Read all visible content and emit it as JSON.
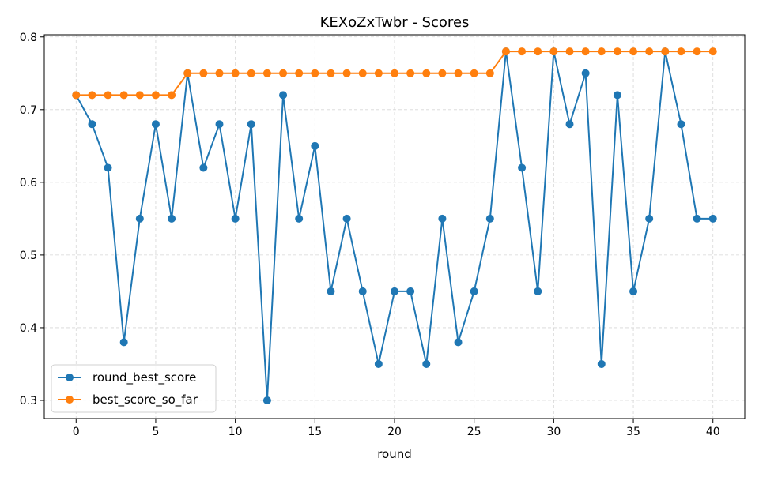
{
  "chart_data": {
    "type": "line",
    "title": "KEXoZxTwbr - Scores",
    "xlabel": "round",
    "ylabel": "",
    "xlim": [
      -2,
      42
    ],
    "ylim": [
      0.275,
      0.803
    ],
    "xticks": [
      0,
      5,
      10,
      15,
      20,
      25,
      30,
      35,
      40
    ],
    "yticks": [
      0.3,
      0.4,
      0.5,
      0.6,
      0.7,
      0.8
    ],
    "grid": true,
    "legend_position": "bottom-left",
    "x": [
      0,
      1,
      2,
      3,
      4,
      5,
      6,
      7,
      8,
      9,
      10,
      11,
      12,
      13,
      14,
      15,
      16,
      17,
      18,
      19,
      20,
      21,
      22,
      23,
      24,
      25,
      26,
      27,
      28,
      29,
      30,
      31,
      32,
      33,
      34,
      35,
      36,
      37,
      38,
      39,
      40
    ],
    "series": [
      {
        "name": "round_best_score",
        "color": "#1f77b4",
        "values": [
          0.72,
          0.68,
          0.62,
          0.38,
          0.55,
          0.68,
          0.55,
          0.75,
          0.62,
          0.68,
          0.55,
          0.68,
          0.3,
          0.72,
          0.55,
          0.65,
          0.45,
          0.55,
          0.45,
          0.35,
          0.45,
          0.45,
          0.35,
          0.55,
          0.38,
          0.45,
          0.55,
          0.78,
          0.62,
          0.45,
          0.78,
          0.68,
          0.75,
          0.35,
          0.72,
          0.45,
          0.55,
          0.78,
          0.68,
          0.55,
          0.55
        ]
      },
      {
        "name": "best_score_so_far",
        "color": "#ff7f0e",
        "values": [
          0.72,
          0.72,
          0.72,
          0.72,
          0.72,
          0.72,
          0.72,
          0.75,
          0.75,
          0.75,
          0.75,
          0.75,
          0.75,
          0.75,
          0.75,
          0.75,
          0.75,
          0.75,
          0.75,
          0.75,
          0.75,
          0.75,
          0.75,
          0.75,
          0.75,
          0.75,
          0.75,
          0.78,
          0.78,
          0.78,
          0.78,
          0.78,
          0.78,
          0.78,
          0.78,
          0.78,
          0.78,
          0.78,
          0.78,
          0.78,
          0.78
        ]
      }
    ]
  }
}
